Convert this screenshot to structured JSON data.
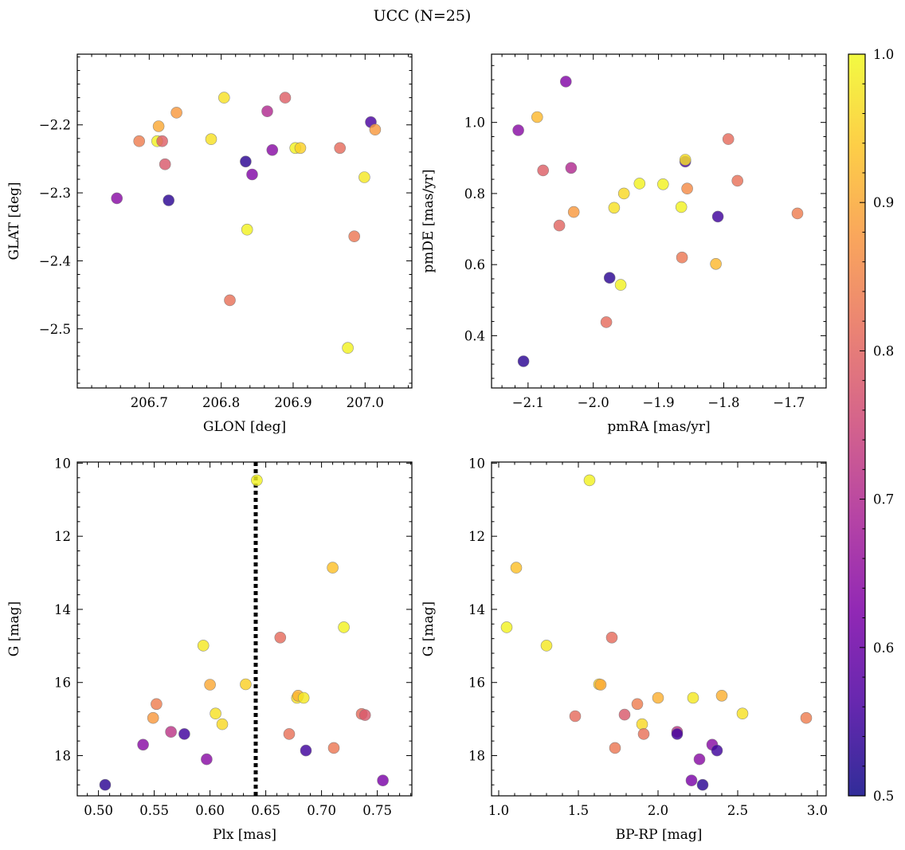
{
  "title": "UCC (N=25)",
  "colorbar": {
    "min": 0.5,
    "max": 1.0,
    "cmap": "plasma",
    "ticks": [
      0.5,
      0.6,
      0.7,
      0.8,
      0.9,
      1.0
    ],
    "tick_labels": [
      "0.5",
      "0.6",
      "0.7",
      "0.8",
      "0.9",
      "1.0"
    ]
  },
  "chart_data": [
    {
      "type": "scatter",
      "id": "glon-glat",
      "title": "",
      "xlabel": "GLON [deg]",
      "ylabel": "GLAT [deg]",
      "xlim": [
        206.6,
        207.065
      ],
      "ylim": [
        -2.587,
        -2.096
      ],
      "xticks": [
        206.7,
        206.8,
        206.9,
        207.0
      ],
      "xtick_labels": [
        "206.7",
        "206.8",
        "206.9",
        "207.0"
      ],
      "yticks": [
        -2.2,
        -2.3,
        -2.4,
        -2.5
      ],
      "ytick_labels": [
        "−2.2",
        "−2.3",
        "−2.4",
        "−2.5"
      ],
      "points": [
        {
          "x": 206.655,
          "y": -2.308,
          "c": 0.64
        },
        {
          "x": 206.686,
          "y": -2.224,
          "c": 0.84
        },
        {
          "x": 206.711,
          "y": -2.224,
          "c": 0.99
        },
        {
          "x": 206.713,
          "y": -2.202,
          "c": 0.9
        },
        {
          "x": 206.718,
          "y": -2.224,
          "c": 0.79
        },
        {
          "x": 206.722,
          "y": -2.258,
          "c": 0.78
        },
        {
          "x": 206.727,
          "y": -2.311,
          "c": 0.53
        },
        {
          "x": 206.738,
          "y": -2.182,
          "c": 0.88
        },
        {
          "x": 206.786,
          "y": -2.221,
          "c": 0.97
        },
        {
          "x": 206.804,
          "y": -2.16,
          "c": 0.97
        },
        {
          "x": 206.812,
          "y": -2.458,
          "c": 0.82
        },
        {
          "x": 206.834,
          "y": -2.254,
          "c": 0.53
        },
        {
          "x": 206.836,
          "y": -2.354,
          "c": 0.99
        },
        {
          "x": 206.843,
          "y": -2.273,
          "c": 0.63
        },
        {
          "x": 206.864,
          "y": -2.18,
          "c": 0.7
        },
        {
          "x": 206.871,
          "y": -2.237,
          "c": 0.64
        },
        {
          "x": 206.889,
          "y": -2.16,
          "c": 0.79
        },
        {
          "x": 206.903,
          "y": -2.234,
          "c": 0.99
        },
        {
          "x": 206.91,
          "y": -2.234,
          "c": 0.95
        },
        {
          "x": 206.965,
          "y": -2.234,
          "c": 0.81
        },
        {
          "x": 206.976,
          "y": -2.528,
          "c": 0.99
        },
        {
          "x": 206.985,
          "y": -2.364,
          "c": 0.83
        },
        {
          "x": 206.999,
          "y": -2.277,
          "c": 0.98
        },
        {
          "x": 207.008,
          "y": -2.196,
          "c": 0.56
        },
        {
          "x": 207.014,
          "y": -2.207,
          "c": 0.88
        }
      ]
    },
    {
      "type": "scatter",
      "id": "pm",
      "title": "",
      "xlabel": "pmRA [mas/yr]",
      "ylabel": "pmDE [mas/yr]",
      "xlim": [
        -2.156,
        -1.643
      ],
      "ylim": [
        0.253,
        1.192
      ],
      "xticks": [
        -2.1,
        -2.0,
        -1.9,
        -1.8,
        -1.7
      ],
      "xtick_labels": [
        "−2.1",
        "−2.0",
        "−1.9",
        "−1.8",
        "−1.7"
      ],
      "yticks": [
        0.4,
        0.6,
        0.8,
        1.0
      ],
      "ytick_labels": [
        "0.4",
        "0.6",
        "0.8",
        "1.0"
      ],
      "points": [
        {
          "x": -2.115,
          "y": 0.978,
          "c": 0.64
        },
        {
          "x": -2.107,
          "y": 0.328,
          "c": 0.53
        },
        {
          "x": -2.086,
          "y": 1.015,
          "c": 0.92
        },
        {
          "x": -2.077,
          "y": 0.865,
          "c": 0.79
        },
        {
          "x": -2.052,
          "y": 0.71,
          "c": 0.8
        },
        {
          "x": -2.042,
          "y": 1.115,
          "c": 0.63
        },
        {
          "x": -2.034,
          "y": 0.872,
          "c": 0.7
        },
        {
          "x": -2.03,
          "y": 0.748,
          "c": 0.88
        },
        {
          "x": -1.98,
          "y": 0.438,
          "c": 0.81
        },
        {
          "x": -1.975,
          "y": 0.563,
          "c": 0.53
        },
        {
          "x": -1.968,
          "y": 0.76,
          "c": 0.97
        },
        {
          "x": -1.958,
          "y": 0.543,
          "c": 0.99
        },
        {
          "x": -1.953,
          "y": 0.8,
          "c": 0.96
        },
        {
          "x": -1.929,
          "y": 0.828,
          "c": 0.99
        },
        {
          "x": -1.893,
          "y": 0.826,
          "c": 0.99
        },
        {
          "x": -1.865,
          "y": 0.762,
          "c": 0.99
        },
        {
          "x": -1.864,
          "y": 0.62,
          "c": 0.83
        },
        {
          "x": -1.859,
          "y": 0.89,
          "c": 0.56
        },
        {
          "x": -1.859,
          "y": 0.895,
          "c": 0.97
        },
        {
          "x": -1.856,
          "y": 0.814,
          "c": 0.86
        },
        {
          "x": -1.812,
          "y": 0.602,
          "c": 0.92
        },
        {
          "x": -1.809,
          "y": 0.735,
          "c": 0.55
        },
        {
          "x": -1.793,
          "y": 0.953,
          "c": 0.81
        },
        {
          "x": -1.779,
          "y": 0.836,
          "c": 0.82
        },
        {
          "x": -1.687,
          "y": 0.744,
          "c": 0.84
        }
      ]
    },
    {
      "type": "scatter",
      "id": "plx-g",
      "title": "",
      "xlabel": "Plx [mas]",
      "ylabel": "G [mag]",
      "xlim": [
        0.481,
        0.781
      ],
      "ylim": [
        19.1,
        9.97
      ],
      "xticks": [
        0.5,
        0.55,
        0.6,
        0.65,
        0.7,
        0.75
      ],
      "xtick_labels": [
        "0.50",
        "0.55",
        "0.60",
        "0.65",
        "0.70",
        "0.75"
      ],
      "yticks": [
        10,
        12,
        14,
        16,
        18
      ],
      "ytick_labels": [
        "10",
        "12",
        "14",
        "16",
        "18"
      ],
      "vline": {
        "x": 0.641,
        "style": "dotted"
      },
      "points": [
        {
          "x": 0.506,
          "y": 18.8,
          "c": 0.53
        },
        {
          "x": 0.54,
          "y": 17.7,
          "c": 0.64
        },
        {
          "x": 0.549,
          "y": 16.97,
          "c": 0.88
        },
        {
          "x": 0.552,
          "y": 16.59,
          "c": 0.84
        },
        {
          "x": 0.565,
          "y": 17.35,
          "c": 0.72
        },
        {
          "x": 0.577,
          "y": 17.41,
          "c": 0.55
        },
        {
          "x": 0.594,
          "y": 14.99,
          "c": 0.98
        },
        {
          "x": 0.597,
          "y": 18.1,
          "c": 0.64
        },
        {
          "x": 0.6,
          "y": 16.06,
          "c": 0.9
        },
        {
          "x": 0.605,
          "y": 16.85,
          "c": 0.97
        },
        {
          "x": 0.611,
          "y": 17.14,
          "c": 0.96
        },
        {
          "x": 0.632,
          "y": 16.05,
          "c": 0.95
        },
        {
          "x": 0.642,
          "y": 10.47,
          "c": 0.99
        },
        {
          "x": 0.663,
          "y": 14.77,
          "c": 0.81
        },
        {
          "x": 0.671,
          "y": 17.41,
          "c": 0.82
        },
        {
          "x": 0.678,
          "y": 16.42,
          "c": 0.97
        },
        {
          "x": 0.679,
          "y": 16.36,
          "c": 0.91
        },
        {
          "x": 0.684,
          "y": 16.42,
          "c": 0.98
        },
        {
          "x": 0.686,
          "y": 17.86,
          "c": 0.55
        },
        {
          "x": 0.71,
          "y": 12.86,
          "c": 0.93
        },
        {
          "x": 0.711,
          "y": 17.79,
          "c": 0.83
        },
        {
          "x": 0.72,
          "y": 14.49,
          "c": 0.99
        },
        {
          "x": 0.736,
          "y": 16.86,
          "c": 0.81
        },
        {
          "x": 0.739,
          "y": 16.89,
          "c": 0.78
        },
        {
          "x": 0.755,
          "y": 18.68,
          "c": 0.62
        }
      ]
    },
    {
      "type": "scatter",
      "id": "color-g",
      "title": "",
      "xlabel": "BP-RP [mag]",
      "ylabel": "G [mag]",
      "xlim": [
        0.955,
        3.055
      ],
      "ylim": [
        19.1,
        9.97
      ],
      "xticks": [
        1.0,
        1.5,
        2.0,
        2.5,
        3.0
      ],
      "xtick_labels": [
        "1.0",
        "1.5",
        "2.0",
        "2.5",
        "3.0"
      ],
      "yticks": [
        10,
        12,
        14,
        16,
        18
      ],
      "ytick_labels": [
        "10",
        "12",
        "14",
        "16",
        "18"
      ],
      "points": [
        {
          "x": 1.05,
          "y": 14.49,
          "c": 0.99
        },
        {
          "x": 1.11,
          "y": 12.86,
          "c": 0.93
        },
        {
          "x": 1.3,
          "y": 14.99,
          "c": 0.98
        },
        {
          "x": 1.48,
          "y": 16.92,
          "c": 0.81
        },
        {
          "x": 1.57,
          "y": 10.47,
          "c": 0.99
        },
        {
          "x": 1.63,
          "y": 16.05,
          "c": 0.95
        },
        {
          "x": 1.64,
          "y": 16.06,
          "c": 0.9
        },
        {
          "x": 1.71,
          "y": 14.77,
          "c": 0.81
        },
        {
          "x": 1.73,
          "y": 17.79,
          "c": 0.83
        },
        {
          "x": 1.79,
          "y": 16.88,
          "c": 0.78
        },
        {
          "x": 1.87,
          "y": 16.59,
          "c": 0.84
        },
        {
          "x": 1.9,
          "y": 17.14,
          "c": 0.96
        },
        {
          "x": 1.91,
          "y": 17.41,
          "c": 0.82
        },
        {
          "x": 2.0,
          "y": 16.42,
          "c": 0.91
        },
        {
          "x": 2.12,
          "y": 17.35,
          "c": 0.72
        },
        {
          "x": 2.12,
          "y": 17.41,
          "c": 0.55
        },
        {
          "x": 2.21,
          "y": 18.68,
          "c": 0.62
        },
        {
          "x": 2.22,
          "y": 16.42,
          "c": 0.98
        },
        {
          "x": 2.26,
          "y": 18.1,
          "c": 0.64
        },
        {
          "x": 2.28,
          "y": 18.8,
          "c": 0.53
        },
        {
          "x": 2.34,
          "y": 17.7,
          "c": 0.64
        },
        {
          "x": 2.37,
          "y": 17.86,
          "c": 0.55
        },
        {
          "x": 2.4,
          "y": 16.36,
          "c": 0.91
        },
        {
          "x": 2.53,
          "y": 16.85,
          "c": 0.97
        },
        {
          "x": 2.93,
          "y": 16.97,
          "c": 0.84
        }
      ]
    }
  ]
}
